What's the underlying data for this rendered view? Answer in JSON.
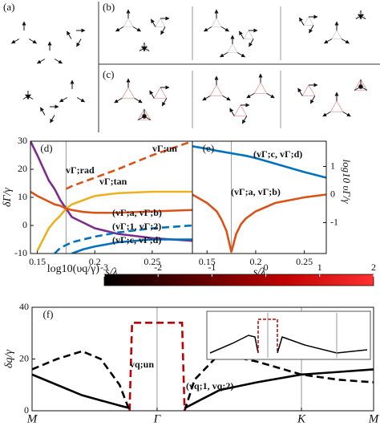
{
  "panels": {
    "a": "(a)",
    "b": "(b)",
    "c": "(c)"
  },
  "chart_data": [
    {
      "type": "line",
      "panel_label": "(d)",
      "xlabel": "s/λ",
      "ylabel": "δΓ/γ",
      "x": [
        0.144,
        0.15,
        0.16,
        0.165,
        0.17,
        0.175,
        0.18,
        0.19,
        0.2,
        0.22,
        0.25,
        0.285
      ],
      "xlim": [
        0.144,
        0.285
      ],
      "xticks": [
        0.15,
        0.2,
        0.25
      ],
      "ylim": [
        -10,
        30
      ],
      "yticks": [
        -10,
        0,
        10,
        20,
        30
      ],
      "vlines": [
        0.175
      ],
      "series": [
        {
          "name": "vΓ;rad",
          "color": "#7b2d8e",
          "values": [
            30,
            25,
            16,
            13,
            9,
            6,
            3,
            1,
            -1,
            -3,
            -4.5,
            -5.5
          ]
        },
        {
          "name": "vΓ;un",
          "color": "#d95319",
          "dash": true,
          "values": [
            null,
            null,
            null,
            null,
            null,
            13,
            14,
            15.5,
            17,
            20,
            25,
            30
          ]
        },
        {
          "name": "vΓ;tan",
          "color": "#edb120",
          "values": [
            null,
            -9,
            -1,
            1.5,
            3.5,
            6,
            7.5,
            9,
            10.5,
            11.5,
            12,
            12
          ]
        },
        {
          "name": "(vΓ;a, vΓ;b)",
          "color": "#d95319",
          "values": [
            12,
            10.5,
            8.5,
            7.5,
            7,
            6,
            5.5,
            4.8,
            4.5,
            4.5,
            5,
            5.5
          ]
        },
        {
          "name": "(vΓ;1, vΓ;2)",
          "color": "#0072bd",
          "dash": true,
          "values": [
            null,
            null,
            null,
            -10,
            -8,
            -7,
            -6,
            -5,
            -4,
            -2.5,
            -1,
            0
          ]
        },
        {
          "name": "(vΓ;c, vΓ;d)",
          "color": "#0072bd",
          "values": [
            null,
            null,
            null,
            null,
            null,
            null,
            -10,
            -8.5,
            -7.5,
            -6,
            -5,
            -5
          ]
        }
      ]
    },
    {
      "type": "line",
      "panel_label": "(e)",
      "xlabel": "s/λ",
      "y2label": "log10 υΓ/γ",
      "x": [
        0.135,
        0.15,
        0.16,
        0.165,
        0.17,
        0.175,
        0.18,
        0.185,
        0.19,
        0.2,
        0.22,
        0.25,
        0.2725
      ],
      "xlim": [
        0.135,
        0.2725
      ],
      "xticks": [
        0.15,
        0.2,
        0.25
      ],
      "y2lim": [
        -2.1,
        1.9
      ],
      "y2ticks": [
        1,
        0,
        -1
      ],
      "vlines": [
        0.175
      ],
      "series": [
        {
          "name": "(vΓ;c, vΓ;d)",
          "color": "#0072bd",
          "axis": "y2",
          "values": [
            1.72,
            1.63,
            1.56,
            1.53,
            1.5,
            1.47,
            1.44,
            1.41,
            1.38,
            1.3,
            1.1,
            0.8,
            0.6
          ]
        },
        {
          "name": "(vΓ;a, vΓ;b)",
          "color": "#d95319",
          "axis": "y2",
          "values": [
            0,
            -0.3,
            -0.6,
            -0.9,
            -1.3,
            -2.05,
            -1.4,
            -1.05,
            -0.85,
            -0.6,
            -0.3,
            -0.1,
            0
          ]
        }
      ]
    },
    {
      "type": "colorbar",
      "title": "log10(υq/γ)",
      "lim": [
        -3,
        2
      ],
      "ticks": [
        -3,
        -2,
        -1,
        0,
        1,
        2
      ],
      "colors": [
        "#000000",
        "#5a0000",
        "#c00000",
        "#ff3030"
      ]
    },
    {
      "type": "line",
      "panel_label": "(f)",
      "ylabel": "δq/γ",
      "x": [
        0,
        0.2,
        0.4,
        0.55,
        0.7,
        0.78,
        0.8,
        1,
        1.2,
        1.22,
        1.3,
        1.5,
        1.8,
        2.155,
        2.45,
        2.732
      ],
      "xlim": [
        0,
        2.732
      ],
      "xticks": [
        {
          "value": 0,
          "label": "M"
        },
        {
          "value": 1,
          "label": "Γ"
        },
        {
          "value": 2.155,
          "label": "K"
        },
        {
          "value": 2.732,
          "label": "M"
        }
      ],
      "ylim": [
        0,
        40
      ],
      "yticks": [
        0,
        20,
        40
      ],
      "vlines": [
        1,
        2.155
      ],
      "series": [
        {
          "color": "#000000",
          "dash": true,
          "values": [
            16,
            20,
            23,
            20,
            10,
            0,
            null,
            null,
            null,
            0,
            12,
            22,
            19,
            14,
            12,
            11
          ]
        },
        {
          "name": "vq;un",
          "color": "#c00000",
          "dash": true,
          "values": [
            null,
            null,
            null,
            null,
            null,
            0,
            34,
            34,
            34,
            0,
            null,
            null,
            null,
            null,
            null,
            null
          ]
        },
        {
          "name": "(vq;1, vq;2)",
          "color": "#000000",
          "values": [
            14,
            10,
            6,
            4,
            2,
            1,
            null,
            null,
            null,
            1,
            3,
            8,
            11,
            14,
            15,
            16
          ]
        }
      ]
    }
  ]
}
